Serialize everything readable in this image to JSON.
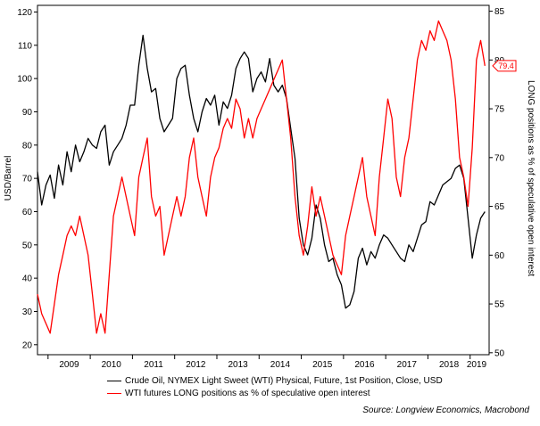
{
  "chart_data": {
    "type": "line",
    "title": "",
    "xlabel": "",
    "ylabel": "USD/Barrel",
    "y2label": "LONG positions as % of speculative open interest",
    "xlim": [
      2008.75,
      2019.45
    ],
    "ylim": [
      17,
      122
    ],
    "y2lim": [
      49.8,
      85.6
    ],
    "x_ticks": [
      "2009",
      "2010",
      "2011",
      "2012",
      "2013",
      "2014",
      "2015",
      "2016",
      "2017",
      "2018",
      "2019"
    ],
    "y_ticks": [
      20,
      30,
      40,
      50,
      60,
      70,
      80,
      90,
      100,
      110,
      120
    ],
    "y2_ticks": [
      50,
      55,
      60,
      65,
      70,
      75,
      80,
      85
    ],
    "last_value_label": "79.4",
    "grid": false,
    "legend_position": "bottom",
    "series": [
      {
        "name": "Crude Oil, NYMEX Light Sweet (WTI) Physical, Future, 1st Position, Close, USD",
        "axis": "left",
        "color": "#000000",
        "x": [
          2008.75,
          2008.85,
          2008.95,
          2009.05,
          2009.15,
          2009.25,
          2009.35,
          2009.45,
          2009.55,
          2009.65,
          2009.75,
          2009.85,
          2009.95,
          2010.05,
          2010.15,
          2010.25,
          2010.35,
          2010.45,
          2010.55,
          2010.65,
          2010.75,
          2010.85,
          2010.95,
          2011.05,
          2011.15,
          2011.25,
          2011.35,
          2011.45,
          2011.55,
          2011.65,
          2011.75,
          2011.85,
          2011.95,
          2012.05,
          2012.15,
          2012.25,
          2012.35,
          2012.45,
          2012.55,
          2012.65,
          2012.75,
          2012.85,
          2012.95,
          2013.05,
          2013.15,
          2013.25,
          2013.35,
          2013.45,
          2013.55,
          2013.65,
          2013.75,
          2013.85,
          2013.95,
          2014.05,
          2014.15,
          2014.25,
          2014.35,
          2014.45,
          2014.55,
          2014.65,
          2014.75,
          2014.85,
          2014.95,
          2015.05,
          2015.15,
          2015.25,
          2015.35,
          2015.45,
          2015.55,
          2015.65,
          2015.75,
          2015.85,
          2015.95,
          2016.05,
          2016.15,
          2016.25,
          2016.35,
          2016.45,
          2016.55,
          2016.65,
          2016.75,
          2016.85,
          2016.95,
          2017.05,
          2017.15,
          2017.25,
          2017.35,
          2017.45,
          2017.55,
          2017.65,
          2017.75,
          2017.85,
          2017.95,
          2018.05,
          2018.15,
          2018.25,
          2018.35,
          2018.45,
          2018.55,
          2018.65,
          2018.75,
          2018.85,
          2018.95,
          2019.05,
          2019.15,
          2019.25,
          2019.35
        ],
        "values": [
          72,
          62,
          68,
          71,
          64,
          74,
          68,
          78,
          72,
          80,
          75,
          78,
          82,
          80,
          79,
          84,
          86,
          74,
          78,
          80,
          82,
          86,
          92,
          92,
          104,
          113,
          103,
          96,
          97,
          88,
          84,
          86,
          88,
          100,
          103,
          104,
          95,
          88,
          84,
          90,
          94,
          92,
          95,
          86,
          93,
          91,
          95,
          103,
          106,
          108,
          106,
          96,
          100,
          102,
          99,
          106,
          98,
          96,
          98,
          94,
          85,
          76,
          58,
          50,
          47,
          52,
          62,
          58,
          50,
          45,
          46,
          41,
          38,
          31,
          32,
          36,
          46,
          49,
          44,
          48,
          46,
          50,
          53,
          52,
          50,
          48,
          46,
          45,
          50,
          48,
          52,
          56,
          57,
          63,
          62,
          65,
          68,
          69,
          70,
          73,
          74,
          70,
          58,
          46,
          53,
          58,
          60
        ]
      },
      {
        "name": "WTI futures LONG positions as % of speculative open interest",
        "axis": "right",
        "color": "#ff0000",
        "x": [
          2008.75,
          2008.85,
          2008.95,
          2009.05,
          2009.15,
          2009.25,
          2009.35,
          2009.45,
          2009.55,
          2009.65,
          2009.75,
          2009.85,
          2009.95,
          2010.05,
          2010.15,
          2010.25,
          2010.35,
          2010.45,
          2010.55,
          2010.65,
          2010.75,
          2010.85,
          2010.95,
          2011.05,
          2011.15,
          2011.25,
          2011.35,
          2011.45,
          2011.55,
          2011.65,
          2011.75,
          2011.85,
          2011.95,
          2012.05,
          2012.15,
          2012.25,
          2012.35,
          2012.45,
          2012.55,
          2012.65,
          2012.75,
          2012.85,
          2012.95,
          2013.05,
          2013.15,
          2013.25,
          2013.35,
          2013.45,
          2013.55,
          2013.65,
          2013.75,
          2013.85,
          2013.95,
          2014.05,
          2014.15,
          2014.25,
          2014.35,
          2014.45,
          2014.55,
          2014.65,
          2014.75,
          2014.85,
          2014.95,
          2015.05,
          2015.15,
          2015.25,
          2015.35,
          2015.45,
          2015.55,
          2015.65,
          2015.75,
          2015.85,
          2015.95,
          2016.05,
          2016.15,
          2016.25,
          2016.35,
          2016.45,
          2016.55,
          2016.65,
          2016.75,
          2016.85,
          2016.95,
          2017.05,
          2017.15,
          2017.25,
          2017.35,
          2017.45,
          2017.55,
          2017.65,
          2017.75,
          2017.85,
          2017.95,
          2018.05,
          2018.15,
          2018.25,
          2018.35,
          2018.45,
          2018.55,
          2018.65,
          2018.75,
          2018.85,
          2018.95,
          2019.05,
          2019.15,
          2019.25,
          2019.35
        ],
        "values": [
          56,
          54,
          53,
          52,
          55,
          58,
          60,
          62,
          63,
          62,
          64,
          62,
          60,
          56,
          52,
          54,
          52,
          58,
          64,
          66,
          68,
          66,
          64,
          62,
          68,
          70,
          72,
          66,
          64,
          65,
          60,
          62,
          64,
          66,
          64,
          66,
          70,
          72,
          68,
          66,
          64,
          68,
          70,
          71,
          73,
          74,
          73,
          76,
          75,
          72,
          74,
          72,
          74,
          75,
          76,
          77,
          78,
          79,
          80,
          76,
          72,
          66,
          62,
          60,
          63,
          67,
          64,
          66,
          64,
          62,
          60,
          59,
          58,
          62,
          64,
          66,
          68,
          70,
          66,
          64,
          62,
          68,
          72,
          76,
          74,
          68,
          66,
          70,
          72,
          76,
          80,
          82,
          81,
          83,
          82,
          84,
          83,
          82,
          80,
          76,
          70,
          68,
          65,
          71,
          80,
          82,
          79.4
        ]
      }
    ],
    "legend": [
      "Crude Oil, NYMEX Light Sweet (WTI) Physical, Future, 1st Position, Close, USD",
      "WTI futures LONG positions as % of speculative open interest"
    ],
    "source": "Source: Longview Economics, Macrobond"
  }
}
